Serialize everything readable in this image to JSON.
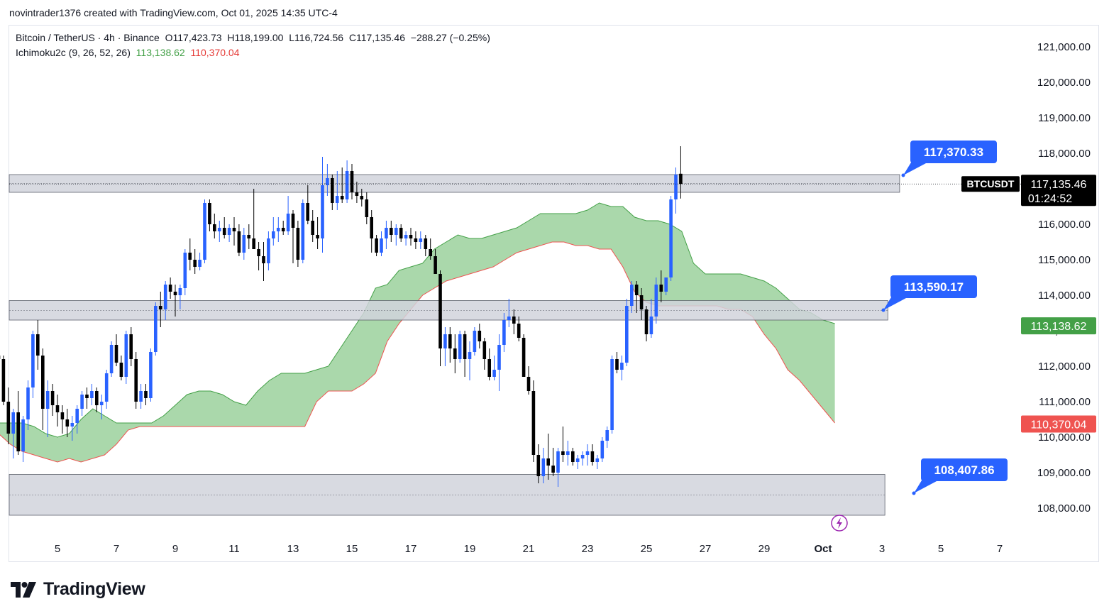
{
  "credit": "novintrader1376 created with TradingView.com, Oct 01, 2025 14:35 UTC-4",
  "legend": {
    "symbol_line": "Bitcoin / TetherUS · 4h · Binance",
    "open": "O117,423.73",
    "high": "H118,199.00",
    "low": "L116,724.56",
    "close": "C117,135.46",
    "change": "−288.27 (−0.25%)",
    "indicator": "Ichimoku2c (9, 26, 52, 26)",
    "ind_val1": "113,138.62",
    "ind_val2": "110,370.04"
  },
  "brand": "TradingView",
  "colors": {
    "bull": "#2962ff",
    "bear": "#000000",
    "cloud": "#a5d6a7",
    "cloud_edge_top": "#43a047",
    "cloud_edge_bottom": "#ef5350",
    "zone_fill": "#d1d4dc",
    "callout": "#2962ff"
  },
  "chart_data": {
    "type": "candlestick",
    "symbol": "BTCUSDT",
    "timeframe": "4h",
    "y_axis": {
      "ticks": [
        108000,
        109000,
        110000,
        111000,
        112000,
        113000,
        114000,
        115000,
        116000,
        117000,
        118000,
        119000,
        120000,
        121000
      ],
      "labels": [
        "108,000.00",
        "109,000.00",
        "110,000.00",
        "111,000.00",
        "112,000.00",
        "113,000.00",
        "114,000.00",
        "115,000.00",
        "116,000.00",
        "117,000.00",
        "118,000.00",
        "119,000.00",
        "120,000.00",
        "121,000.00"
      ]
    },
    "x_axis": {
      "labels": [
        "5",
        "7",
        "9",
        "11",
        "13",
        "15",
        "17",
        "19",
        "21",
        "23",
        "25",
        "27",
        "29",
        "Oct",
        "3",
        "5",
        "7"
      ],
      "label_days": [
        5,
        7,
        9,
        11,
        13,
        15,
        17,
        19,
        21,
        23,
        25,
        27,
        29,
        31,
        33,
        35,
        37
      ]
    },
    "price_badges": [
      {
        "label": "BTCUSDT",
        "value": "117,135.46",
        "sub": "01:24:52",
        "price": 117135.46,
        "color": "#000000"
      },
      {
        "value": "113,138.62",
        "price": 113138.62,
        "color": "#43a047"
      },
      {
        "value": "110,370.04",
        "price": 110370.04,
        "color": "#ef5350"
      }
    ],
    "callouts": [
      {
        "text": "117,370.33",
        "price": 117370.33
      },
      {
        "text": "113,590.17",
        "price": 113590.17
      },
      {
        "text": "108,407.86",
        "price": 108407.86
      }
    ],
    "zones": [
      {
        "top": 117400,
        "bottom": 116900,
        "end_day": 33.6
      },
      {
        "top": 113850,
        "bottom": 113300,
        "end_day": 33.2
      },
      {
        "top": 108950,
        "bottom": 107800,
        "end_day": 33.1
      }
    ],
    "cloud": {
      "days": [
        3.0,
        3.4,
        3.8,
        4.2,
        4.6,
        5.0,
        5.4,
        5.8,
        6.2,
        6.6,
        7.0,
        7.4,
        7.8,
        8.2,
        8.6,
        9.0,
        9.4,
        9.8,
        10.2,
        10.6,
        11.0,
        11.4,
        11.8,
        12.2,
        12.6,
        13.0,
        13.4,
        13.8,
        14.2,
        14.6,
        15.0,
        15.4,
        15.8,
        16.2,
        16.6,
        17.0,
        17.4,
        17.8,
        18.2,
        18.6,
        19.0,
        19.4,
        19.8,
        20.2,
        20.6,
        21.0,
        21.4,
        21.8,
        22.2,
        22.6,
        23.0,
        23.4,
        23.8,
        24.2,
        24.6,
        25.0,
        25.4,
        25.8,
        26.2,
        26.6,
        27.0,
        27.4,
        27.8,
        28.2,
        28.6,
        29.0,
        29.4,
        29.8,
        30.2,
        30.6,
        31.0,
        31.4
      ],
      "upper": [
        110400,
        110400,
        110400,
        110300,
        110100,
        110000,
        110100,
        110500,
        110800,
        110600,
        110400,
        110400,
        110400,
        110400,
        110600,
        110900,
        111200,
        111300,
        111300,
        111200,
        111000,
        110900,
        111300,
        111600,
        111800,
        111800,
        111800,
        111900,
        112000,
        112500,
        113000,
        113500,
        114200,
        114300,
        114700,
        114800,
        114900,
        115300,
        115500,
        115700,
        115600,
        115600,
        115700,
        115800,
        115900,
        116100,
        116300,
        116300,
        116300,
        116300,
        116400,
        116600,
        116500,
        116500,
        116200,
        116100,
        116100,
        116000,
        115800,
        114900,
        114600,
        114600,
        114600,
        114600,
        114500,
        114400,
        114200,
        113900,
        113600,
        113500,
        113300,
        113200
      ],
      "lower": [
        110100,
        109800,
        109600,
        109500,
        109400,
        109300,
        109400,
        109300,
        109400,
        109500,
        109800,
        110200,
        110300,
        110300,
        110300,
        110300,
        110300,
        110300,
        110300,
        110300,
        110300,
        110300,
        110300,
        110300,
        110300,
        110300,
        110300,
        111000,
        111300,
        111300,
        111300,
        111500,
        111800,
        112700,
        113200,
        113600,
        114000,
        114200,
        114400,
        114500,
        114600,
        114700,
        114800,
        115000,
        115200,
        115300,
        115400,
        115500,
        115500,
        115400,
        115400,
        115300,
        115300,
        114800,
        114100,
        113800,
        113700,
        113700,
        113700,
        113700,
        113700,
        113700,
        113600,
        113600,
        113400,
        112900,
        112500,
        111900,
        111600,
        111200,
        110800,
        110400
      ]
    },
    "candles_4h_from_day_3": [
      [
        112300,
        112600,
        111800,
        112200
      ],
      [
        112200,
        112300,
        110900,
        111000
      ],
      [
        111000,
        111400,
        109800,
        110100
      ],
      [
        110100,
        110800,
        109400,
        110700
      ],
      [
        110700,
        111300,
        109500,
        109600
      ],
      [
        109600,
        110600,
        109300,
        110500
      ],
      [
        110500,
        111600,
        110200,
        111400
      ],
      [
        111400,
        113000,
        111100,
        112900
      ],
      [
        112900,
        113300,
        111900,
        112300
      ],
      [
        112300,
        112500,
        110200,
        110800
      ],
      [
        110800,
        111600,
        110000,
        111300
      ],
      [
        111300,
        111500,
        110600,
        110900
      ],
      [
        110900,
        111200,
        110300,
        110700
      ],
      [
        110700,
        110900,
        110100,
        110500
      ],
      [
        110500,
        110800,
        110000,
        110300
      ],
      [
        110300,
        110600,
        109900,
        110400
      ],
      [
        110400,
        110900,
        110100,
        110800
      ],
      [
        110800,
        111300,
        110600,
        111200
      ],
      [
        111200,
        111400,
        110800,
        111100
      ],
      [
        111100,
        111500,
        110900,
        111300
      ],
      [
        111300,
        111400,
        110700,
        110900
      ],
      [
        110900,
        111200,
        110500,
        111000
      ],
      [
        111000,
        111900,
        110800,
        111800
      ],
      [
        111800,
        112700,
        111700,
        112600
      ],
      [
        112600,
        112900,
        112000,
        112100
      ],
      [
        112100,
        112300,
        111600,
        111700
      ],
      [
        111700,
        113000,
        111500,
        112900
      ],
      [
        112900,
        113100,
        112000,
        112200
      ],
      [
        112200,
        112400,
        110800,
        111000
      ],
      [
        111000,
        111500,
        110800,
        111300
      ],
      [
        111300,
        111500,
        110900,
        111100
      ],
      [
        111100,
        112500,
        111000,
        112400
      ],
      [
        112400,
        113800,
        112300,
        113700
      ],
      [
        113700,
        114100,
        113100,
        113600
      ],
      [
        113600,
        114400,
        113300,
        114300
      ],
      [
        114300,
        114500,
        113900,
        114100
      ],
      [
        114100,
        114300,
        113400,
        114000
      ],
      [
        114000,
        114300,
        113600,
        114200
      ],
      [
        114200,
        115300,
        114000,
        115200
      ],
      [
        115200,
        115600,
        114700,
        115000
      ],
      [
        115000,
        115300,
        114600,
        114800
      ],
      [
        114800,
        115200,
        114700,
        115000
      ],
      [
        115000,
        116700,
        114900,
        116600
      ],
      [
        116600,
        116700,
        115800,
        116000
      ],
      [
        116000,
        116300,
        115600,
        115800
      ],
      [
        115800,
        116100,
        115500,
        115900
      ],
      [
        115900,
        116200,
        115600,
        115700
      ],
      [
        115700,
        116000,
        115500,
        115900
      ],
      [
        115900,
        116200,
        115400,
        115800
      ],
      [
        115800,
        116000,
        115100,
        115200
      ],
      [
        115200,
        115900,
        115000,
        115700
      ],
      [
        115700,
        116000,
        115300,
        115600
      ],
      [
        115600,
        117000,
        115400,
        115300
      ],
      [
        115300,
        115500,
        114700,
        115100
      ],
      [
        115100,
        115500,
        114400,
        114900
      ],
      [
        114900,
        115800,
        114700,
        115600
      ],
      [
        115600,
        116200,
        115400,
        115800
      ],
      [
        115800,
        116200,
        115500,
        115900
      ],
      [
        115900,
        116100,
        115700,
        115800
      ],
      [
        115800,
        116800,
        115700,
        116300
      ],
      [
        116300,
        116400,
        114900,
        115900
      ],
      [
        115900,
        116100,
        114800,
        115000
      ],
      [
        115000,
        116700,
        114900,
        116600
      ],
      [
        116600,
        117100,
        116000,
        116100
      ],
      [
        116100,
        116400,
        115500,
        115700
      ],
      [
        115700,
        116200,
        115300,
        115600
      ],
      [
        115600,
        117900,
        115200,
        117100
      ],
      [
        117100,
        117700,
        116800,
        117300
      ],
      [
        117300,
        117400,
        116400,
        116600
      ],
      [
        116600,
        117500,
        116400,
        116800
      ],
      [
        116800,
        117600,
        116600,
        116700
      ],
      [
        116700,
        117800,
        116600,
        117500
      ],
      [
        117500,
        117700,
        116700,
        116900
      ],
      [
        116900,
        117200,
        116600,
        116800
      ],
      [
        116800,
        117000,
        116500,
        116700
      ],
      [
        116700,
        116900,
        116000,
        116200
      ],
      [
        116200,
        116400,
        115200,
        115600
      ],
      [
        115600,
        115700,
        115100,
        115200
      ],
      [
        115200,
        115800,
        115100,
        115600
      ],
      [
        115600,
        116100,
        115300,
        115900
      ],
      [
        115900,
        116100,
        115500,
        115700
      ],
      [
        115700,
        116000,
        115400,
        115900
      ],
      [
        115900,
        116000,
        115500,
        115600
      ],
      [
        115600,
        115800,
        115400,
        115700
      ],
      [
        115700,
        115900,
        115400,
        115600
      ],
      [
        115600,
        115800,
        115300,
        115500
      ],
      [
        115500,
        115800,
        115300,
        115600
      ],
      [
        115600,
        115700,
        115100,
        115300
      ],
      [
        115300,
        115600,
        115000,
        115100
      ],
      [
        115100,
        115300,
        114600,
        114600
      ],
      [
        114600,
        114700,
        112000,
        112500
      ],
      [
        112500,
        113100,
        112000,
        112900
      ],
      [
        112900,
        113100,
        112100,
        112500
      ],
      [
        112500,
        112900,
        111800,
        112200
      ],
      [
        112200,
        113000,
        112100,
        112900
      ],
      [
        112900,
        113000,
        111700,
        112200
      ],
      [
        112200,
        112700,
        111600,
        112400
      ],
      [
        112400,
        113100,
        112300,
        113000
      ],
      [
        113000,
        113200,
        112500,
        112700
      ],
      [
        112700,
        112800,
        111900,
        112200
      ],
      [
        112200,
        112500,
        111600,
        111700
      ],
      [
        111700,
        112300,
        111600,
        111900
      ],
      [
        111900,
        112900,
        111300,
        112600
      ],
      [
        112600,
        113500,
        112400,
        113300
      ],
      [
        113300,
        113900,
        113100,
        113400
      ],
      [
        113400,
        113600,
        112900,
        113200
      ],
      [
        113200,
        113400,
        112700,
        112800
      ],
      [
        112800,
        112900,
        111700,
        111700
      ],
      [
        111700,
        112000,
        111200,
        111300
      ],
      [
        111300,
        111600,
        109300,
        109500
      ],
      [
        109500,
        109800,
        108700,
        108900
      ],
      [
        108900,
        109700,
        108700,
        109400
      ],
      [
        109400,
        110100,
        108800,
        109200
      ],
      [
        109200,
        109700,
        108900,
        109000
      ],
      [
        109000,
        109700,
        108600,
        109600
      ],
      [
        109600,
        110300,
        109300,
        109500
      ],
      [
        109500,
        109900,
        109200,
        109600
      ],
      [
        109600,
        109700,
        109200,
        109300
      ],
      [
        109300,
        109500,
        109100,
        109400
      ],
      [
        109400,
        109600,
        109200,
        109500
      ],
      [
        109500,
        109800,
        109200,
        109600
      ],
      [
        109600,
        109800,
        109200,
        109300
      ],
      [
        109300,
        109500,
        109100,
        109400
      ],
      [
        109400,
        110000,
        109300,
        109900
      ],
      [
        109900,
        110300,
        109700,
        110200
      ],
      [
        110200,
        112300,
        110100,
        112200
      ],
      [
        112200,
        112400,
        111800,
        111900
      ],
      [
        111900,
        112300,
        111600,
        112100
      ],
      [
        112100,
        113900,
        112000,
        113700
      ],
      [
        113700,
        114400,
        113500,
        114300
      ],
      [
        114300,
        114400,
        113500,
        114000
      ],
      [
        114000,
        114200,
        113300,
        113600
      ],
      [
        113600,
        113700,
        112700,
        112900
      ],
      [
        112900,
        113900,
        112800,
        113400
      ],
      [
        113400,
        114500,
        113200,
        114300
      ],
      [
        114300,
        114700,
        113800,
        114100
      ],
      [
        114100,
        114500,
        114000,
        114500
      ],
      [
        114500,
        116800,
        114400,
        116700
      ],
      [
        116700,
        117600,
        116300,
        117400
      ],
      [
        117423.73,
        118199,
        116724.56,
        117135.46
      ]
    ]
  }
}
